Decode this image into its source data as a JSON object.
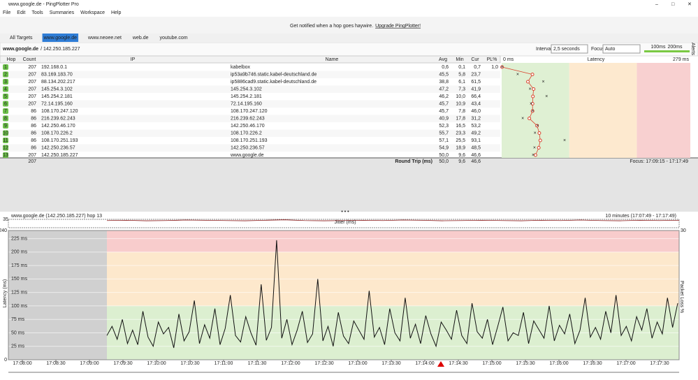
{
  "window": {
    "title": "www.google.de - PingPlotter Pro"
  },
  "menu": [
    "File",
    "Edit",
    "Tools",
    "Summaries",
    "Workspace",
    "Help"
  ],
  "banner": {
    "text": "Get notified when a hop goes haywire.",
    "link": "Upgrade PingPlotter!"
  },
  "tabs": [
    "All Targets",
    "www.google.de",
    "www.neoee.net",
    "web.de",
    "youtube.com"
  ],
  "toolbar": {
    "target": "www.google.de",
    "ip": "/ 142.250.185.227",
    "interval_label": "Interval",
    "interval": "2,5 seconds",
    "focus_label": "Focus",
    "focus": "Auto",
    "thresholds": [
      {
        "value": 100,
        "label": "100ms"
      },
      {
        "value": 200,
        "label": "200ms"
      }
    ],
    "alerts": "Alerts"
  },
  "table": {
    "columns": [
      "Hop",
      "Count",
      "IP",
      "Name",
      "Avg",
      "Min",
      "Cur",
      "PL%"
    ],
    "rows": [
      [
        "1",
        "207",
        "192.168.0.1",
        "kabelbox",
        "0,6",
        "0,1",
        "0,7",
        "1,0"
      ],
      [
        "2",
        "207",
        "83.169.183.70",
        "ip53a9b746.static.kabel-deutschland.de",
        "45,5",
        "5,8",
        "23,7",
        null
      ],
      [
        "3",
        "207",
        "88.134.202.217",
        "ip5886cad9.static.kabel-deutschland.de",
        "38,8",
        "6,1",
        "61,5",
        null
      ],
      [
        "4",
        "207",
        "145.254.3.102",
        "145.254.3.102",
        "47,2",
        "7,3",
        "41,9",
        null
      ],
      [
        "5",
        "207",
        "145.254.2.181",
        "145.254.2.181",
        "46,2",
        "10,0",
        "66,4",
        null
      ],
      [
        "6",
        "207",
        "72.14.195.160",
        "72.14.195.160",
        "45,7",
        "10,9",
        "43,4",
        null
      ],
      [
        "7",
        "86",
        "108.170.247.120",
        "108.170.247.120",
        "45,7",
        "7,8",
        "46,0",
        null
      ],
      [
        "8",
        "86",
        "216.239.62.243",
        "216.239.62.243",
        "40,9",
        "17,8",
        "31,2",
        null
      ],
      [
        "9",
        "86",
        "142.250.46.170",
        "142.250.46.170",
        "52,3",
        "16,5",
        "53,2",
        null
      ],
      [
        "10",
        "86",
        "108.170.226.2",
        "108.170.226.2",
        "55,7",
        "23,3",
        "49,2",
        null
      ],
      [
        "11",
        "86",
        "108.170.251.193",
        "108.170.251.193",
        "57,1",
        "25,5",
        "93,1",
        null
      ],
      [
        "12",
        "86",
        "142.250.236.57",
        "142.250.236.57",
        "54,9",
        "18,9",
        "48,5",
        null
      ],
      [
        "13",
        "207",
        "142.250.185.227",
        "www.google.de",
        "50,0",
        "9,6",
        "46,6",
        null
      ]
    ],
    "summary": {
      "count": "207",
      "label": "Round Trip (ms)",
      "avg": "50,0",
      "min": "9,6",
      "cur": "46,6",
      "focus": "Focus: 17:09:15 - 17:17:49"
    }
  },
  "latency_graph": {
    "title": "Latency",
    "xticks": [
      {
        "value": 0,
        "label": "0 ms"
      },
      {
        "value": 279,
        "label": "279 ms"
      }
    ]
  },
  "chart_data": {
    "type": "line",
    "title": "www.google.de (142.250.185.227) hop 13",
    "range_label": "10 minutes (17:07:49 - 17:17:49)",
    "y_label": "Latency (ms)",
    "y2_label": "Packet Loss %",
    "ylim": [
      0,
      240
    ],
    "yticks": [
      0,
      240
    ],
    "y2lim": [
      0,
      30
    ],
    "y2ticks": [
      30
    ],
    "inner_ticks": [
      {
        "value": 225,
        "label": "225 ms"
      },
      {
        "value": 200,
        "label": "200 ms"
      },
      {
        "value": 175,
        "label": "175 ms"
      },
      {
        "value": 150,
        "label": "150 ms"
      },
      {
        "value": 125,
        "label": "125 ms"
      },
      {
        "value": 100,
        "label": "100 ms"
      },
      {
        "value": 75,
        "label": "75 ms"
      },
      {
        "value": 50,
        "label": "50 ms"
      },
      {
        "value": 25,
        "label": "25 ms"
      }
    ],
    "time_labels": [
      "17:08:00",
      "17:08:30",
      "17:09:00",
      "17:09:30",
      "17:10:00",
      "17:10:30",
      "17:11:00",
      "17:11:30",
      "17:12:00",
      "17:12:30",
      "17:13:00",
      "17:13:30",
      "17:14:00",
      "17:14:30",
      "17:15:00",
      "17:15:30",
      "17:16:00",
      "17:16:30",
      "17:17:00",
      "17:17:30"
    ],
    "color": "#111111",
    "values": [
      45,
      62,
      38,
      75,
      30,
      55,
      28,
      90,
      42,
      25,
      70,
      48,
      60,
      22,
      85,
      35,
      52,
      110,
      30,
      65,
      40,
      95,
      28,
      58,
      120,
      45,
      33,
      80,
      50,
      27,
      140,
      36,
      60,
      222,
      40,
      75,
      28,
      55,
      90,
      32,
      48,
      150,
      35,
      62,
      25,
      88,
      44,
      30,
      72,
      55,
      38,
      128,
      42,
      60,
      28,
      95,
      50,
      35,
      115,
      40,
      66,
      30,
      82,
      48,
      25,
      70,
      55,
      38,
      92,
      45,
      30,
      105,
      52,
      40,
      75,
      28,
      62,
      98,
      35,
      50,
      45,
      88,
      30,
      72,
      56,
      40,
      100,
      35,
      64,
      48,
      85,
      30,
      55,
      115,
      42,
      60,
      38,
      90,
      50,
      120,
      45,
      62,
      35,
      80,
      55,
      95,
      40,
      70,
      48,
      115,
      60,
      105
    ],
    "jitter": {
      "label": "Jitter (ms)",
      "ylim": [
        0,
        35
      ],
      "yticks": [
        35
      ],
      "color": "#8b1a1a",
      "values": [
        30,
        31,
        29,
        30,
        32,
        31,
        30,
        29,
        31,
        33,
        30,
        29,
        30,
        31,
        30,
        32,
        31,
        29,
        30,
        31,
        30,
        29,
        31,
        30,
        32,
        30,
        29,
        31,
        30,
        31
      ]
    }
  }
}
